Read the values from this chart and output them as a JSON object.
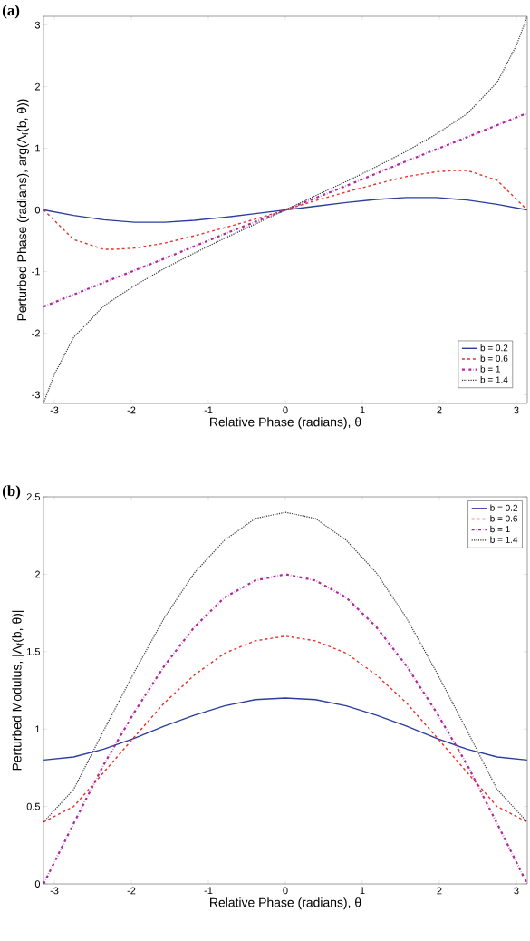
{
  "chart_data": [
    {
      "type": "line",
      "title": "(a)",
      "xlabel": "Relative Phase (radians), θ",
      "ylabel": "Perturbed Phase (radians), arg(Λ$_{f}$(b, θ))",
      "xlim": [
        -3.1416,
        3.1416
      ],
      "ylim": [
        -3.1416,
        3.1416
      ],
      "xticks": [
        -3,
        -2,
        -1,
        0,
        1,
        2,
        3
      ],
      "yticks": [
        -3,
        -2,
        -1,
        0,
        1,
        2,
        3
      ],
      "legend": "bottom right",
      "grid": false,
      "series": [
        {
          "name": "b = 0.2",
          "color": "#2b3ea0",
          "line_style": "solid",
          "x": [
            -3.14,
            -2.75,
            -2.36,
            -1.96,
            -1.57,
            -1.18,
            -0.79,
            -0.39,
            0,
            0.39,
            0.79,
            1.18,
            1.57,
            1.96,
            2.36,
            2.75,
            3.14
          ],
          "values": [
            0,
            -0.09,
            -0.16,
            -0.2,
            -0.2,
            -0.17,
            -0.12,
            -0.06,
            0,
            0.06,
            0.12,
            0.17,
            0.2,
            0.2,
            0.16,
            0.09,
            0
          ]
        },
        {
          "name": "b = 0.6",
          "color": "#e8322a",
          "line_style": "dashed",
          "x": [
            -3.14,
            -2.75,
            -2.36,
            -2.21,
            -1.96,
            -1.57,
            -1.18,
            -0.79,
            -0.39,
            0,
            0.39,
            0.79,
            1.18,
            1.57,
            1.96,
            2.21,
            2.36,
            2.75,
            3.14
          ],
          "values": [
            0,
            -0.48,
            -0.64,
            -0.64,
            -0.62,
            -0.54,
            -0.42,
            -0.29,
            -0.15,
            0,
            0.15,
            0.29,
            0.42,
            0.54,
            0.62,
            0.64,
            0.64,
            0.48,
            0
          ]
        },
        {
          "name": "b = 1",
          "color": "#b0289e",
          "line_style": "dashdot",
          "x": [
            -3.14,
            -2.36,
            -1.57,
            -0.79,
            0,
            0.79,
            1.57,
            2.36,
            3.14
          ],
          "values": [
            -1.57,
            -1.18,
            -0.79,
            -0.39,
            0,
            0.39,
            0.79,
            1.18,
            1.57
          ]
        },
        {
          "name": "b = 1.4",
          "color": "#333333",
          "line_style": "dotted",
          "x": [
            -3.14,
            -3.1,
            -3.0,
            -2.75,
            -2.36,
            -1.96,
            -1.57,
            -1.18,
            -0.79,
            -0.39,
            0,
            0.39,
            0.79,
            1.18,
            1.57,
            1.96,
            2.36,
            2.75,
            3.0,
            3.1,
            3.14
          ],
          "values": [
            -3.14,
            -3.0,
            -2.67,
            -2.07,
            -1.56,
            -1.23,
            -0.95,
            -0.7,
            -0.46,
            -0.23,
            0,
            0.23,
            0.46,
            0.7,
            0.95,
            1.23,
            1.56,
            2.07,
            2.67,
            3.0,
            3.14
          ]
        }
      ]
    },
    {
      "type": "line",
      "title": "(b)",
      "xlabel": "Relative Phase (radians), θ",
      "ylabel": "Perturbed Modulus, |Λ$_{f}$(b, θ)|",
      "xlim": [
        -3.1416,
        3.1416
      ],
      "ylim": [
        0,
        2.5
      ],
      "xticks": [
        -3,
        -2,
        -1,
        0,
        1,
        2,
        3
      ],
      "yticks": [
        0,
        0.5,
        1,
        1.5,
        2,
        2.5
      ],
      "legend": "top right",
      "grid": false,
      "x": [
        -3.14,
        -2.75,
        -2.36,
        -1.96,
        -1.57,
        -1.18,
        -0.79,
        -0.39,
        0,
        0.39,
        0.79,
        1.18,
        1.57,
        1.96,
        2.36,
        2.75,
        3.14
      ],
      "series": [
        {
          "name": "b = 0.2",
          "color": "#2b3ea0",
          "line_style": "solid",
          "values": [
            0.8,
            0.82,
            0.87,
            0.94,
            1.02,
            1.09,
            1.15,
            1.19,
            1.2,
            1.19,
            1.15,
            1.09,
            1.02,
            0.94,
            0.87,
            0.82,
            0.8
          ]
        },
        {
          "name": "b = 0.6",
          "color": "#e8322a",
          "line_style": "dashed",
          "values": [
            0.4,
            0.5,
            0.72,
            0.95,
            1.17,
            1.35,
            1.49,
            1.57,
            1.6,
            1.57,
            1.49,
            1.35,
            1.17,
            0.95,
            0.72,
            0.5,
            0.4
          ]
        },
        {
          "name": "b = 1",
          "color": "#b0289e",
          "line_style": "dashdot",
          "values": [
            0,
            0.39,
            0.77,
            1.11,
            1.41,
            1.66,
            1.85,
            1.96,
            2,
            1.96,
            1.85,
            1.66,
            1.41,
            1.11,
            0.77,
            0.39,
            0
          ]
        },
        {
          "name": "b = 1.4",
          "color": "#333333",
          "line_style": "dotted",
          "values": [
            0.4,
            0.61,
            0.99,
            1.37,
            1.72,
            2.01,
            2.22,
            2.36,
            2.4,
            2.36,
            2.22,
            2.01,
            1.72,
            1.37,
            0.99,
            0.61,
            0.4
          ]
        }
      ]
    }
  ]
}
